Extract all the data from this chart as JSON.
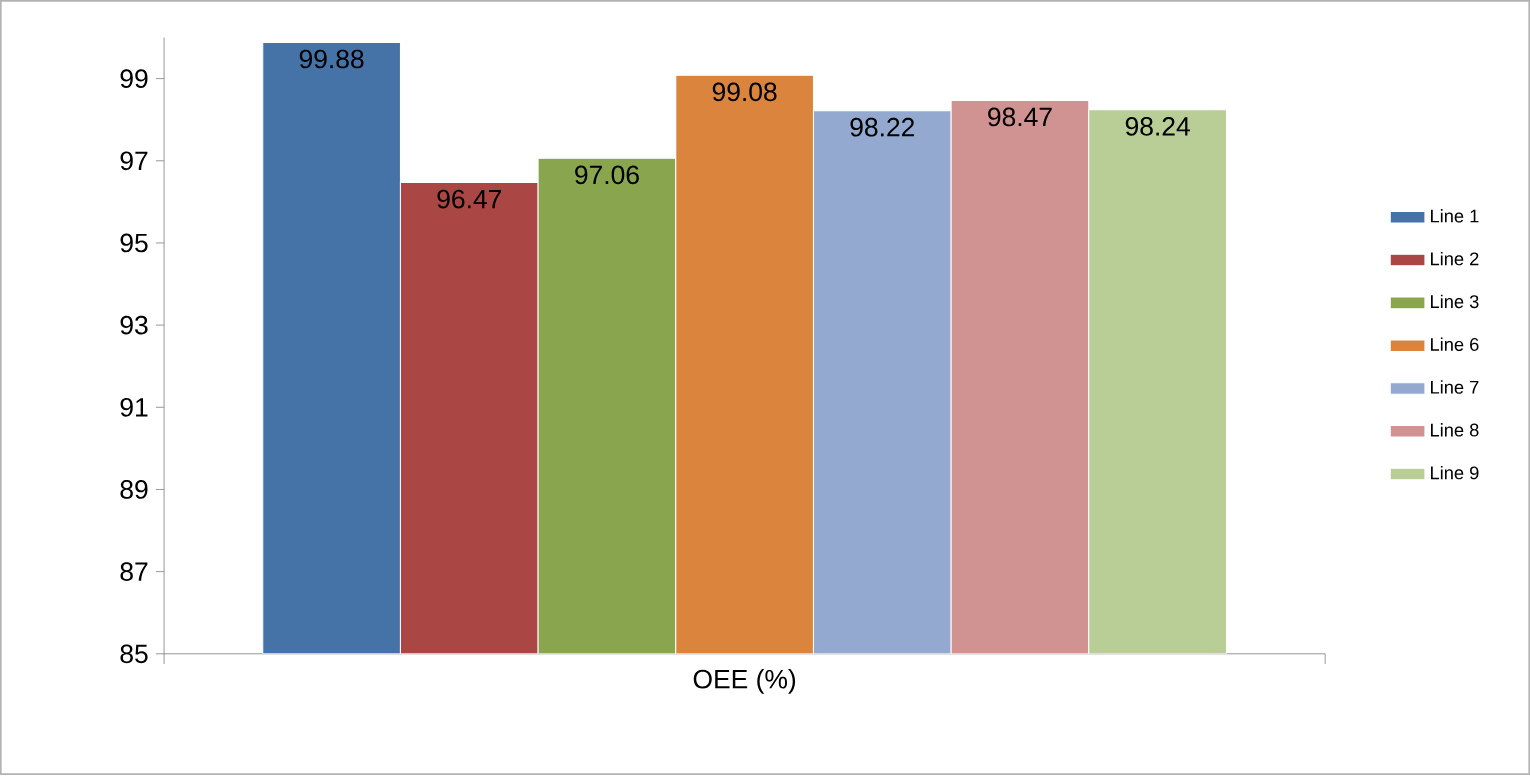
{
  "chart_data": {
    "type": "bar",
    "categories": [
      "OEE (%)"
    ],
    "series": [
      {
        "name": "Line 1",
        "color": "#4572a7",
        "values": [
          99.88
        ]
      },
      {
        "name": "Line 2",
        "color": "#aa4643",
        "values": [
          96.47
        ]
      },
      {
        "name": "Line 3",
        "color": "#89a54e",
        "values": [
          97.06
        ]
      },
      {
        "name": "Line 6",
        "color": "#db843d",
        "values": [
          99.08
        ]
      },
      {
        "name": "Line 7",
        "color": "#93a9cf",
        "values": [
          98.22
        ]
      },
      {
        "name": "Line 8",
        "color": "#d19392",
        "values": [
          98.47
        ]
      },
      {
        "name": "Line 9",
        "color": "#b9cd96",
        "values": [
          98.24
        ]
      }
    ],
    "ylim": [
      85,
      100
    ],
    "yticks": [
      85,
      87,
      89,
      91,
      93,
      95,
      97,
      99
    ],
    "data_labels": true,
    "grid": false,
    "legend": "right"
  }
}
